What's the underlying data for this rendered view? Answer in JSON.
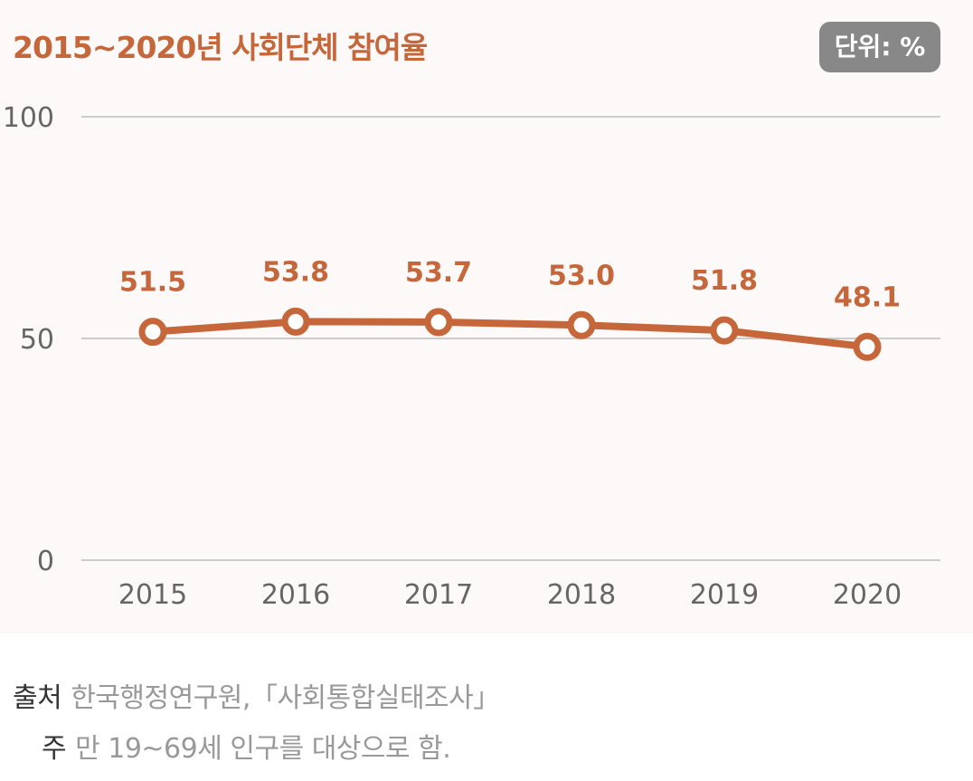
{
  "chart_data": {
    "type": "line",
    "title": "2015~2020년 사회단체 참여율",
    "unit_label": "단위: %",
    "categories": [
      "2015",
      "2016",
      "2017",
      "2018",
      "2019",
      "2020"
    ],
    "series": [
      {
        "values": [
          51.5,
          53.8,
          53.7,
          53.0,
          51.8,
          48.1
        ]
      }
    ],
    "data_labels": [
      "51.5",
      "53.8",
      "53.7",
      "53.0",
      "51.8",
      "48.1"
    ],
    "y_ticks": [
      "0",
      "50",
      "100"
    ],
    "ylim": [
      0,
      100
    ],
    "grid": true,
    "colors": {
      "series": "#c5673a",
      "grid": "#cccccc",
      "axis_text": "#666666"
    }
  },
  "footnotes": {
    "source_label": "출처",
    "source_text": "한국행정연구원,「사회통합실태조사」",
    "note_label": "주",
    "note_text": "만 19~69세 인구를 대상으로 함."
  }
}
